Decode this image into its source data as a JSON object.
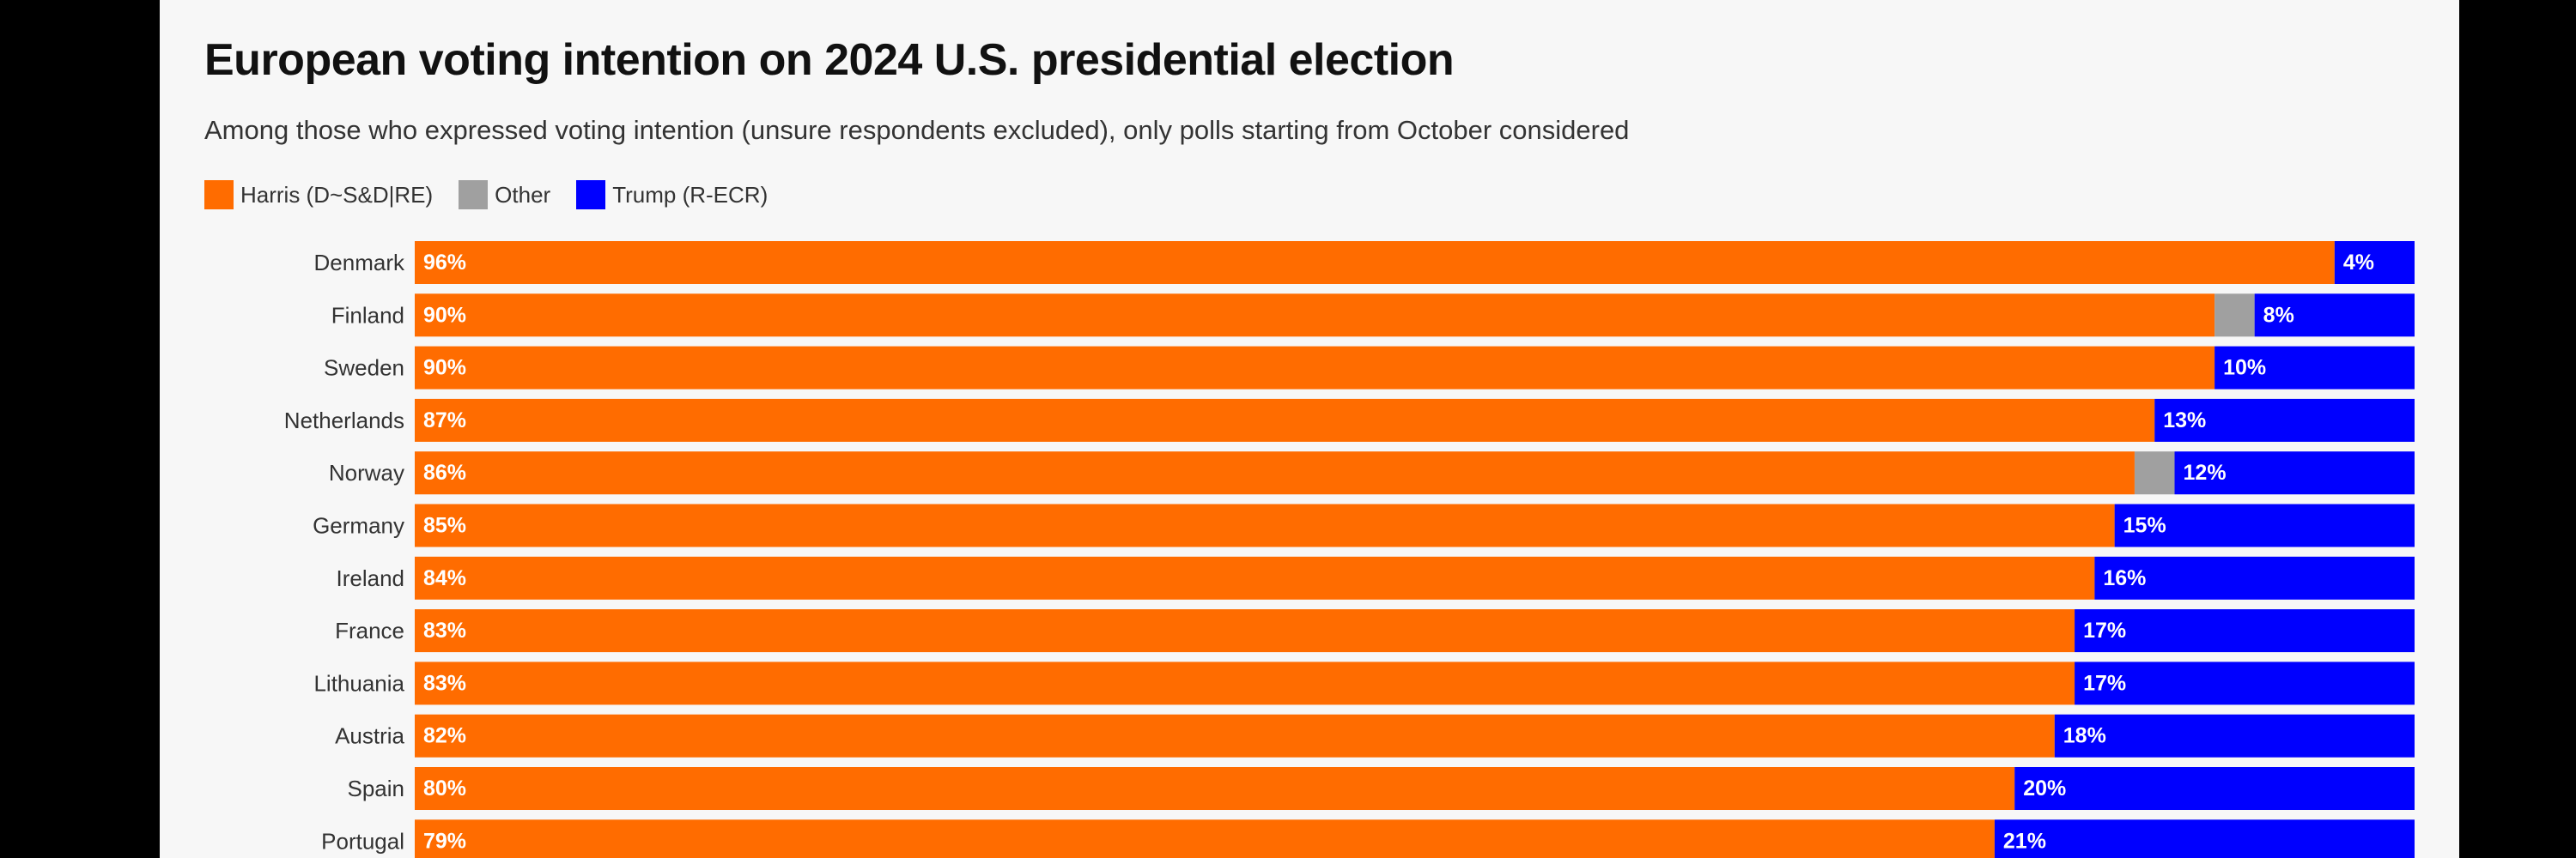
{
  "chart_data": {
    "type": "bar",
    "orientation": "horizontal",
    "stacked": true,
    "title": "European voting intention on 2024 U.S. presidential election",
    "subtitle": "Among those who expressed voting intention (unsure respondents excluded), only polls starting from October considered",
    "legend_position": "top-left",
    "grid": false,
    "xlim": [
      0,
      100
    ],
    "categories": [
      "Denmark",
      "Finland",
      "Sweden",
      "Netherlands",
      "Norway",
      "Germany",
      "Ireland",
      "France",
      "Lithuania",
      "Austria",
      "Spain",
      "Portugal"
    ],
    "series": [
      {
        "name": "Harris (D~S&D|RE)",
        "color": "#ff6c00",
        "values": [
          96,
          90,
          90,
          87,
          86,
          85,
          84,
          83,
          83,
          82,
          80,
          79
        ],
        "labels": [
          "96%",
          "90%",
          "90%",
          "87%",
          "86%",
          "85%",
          "84%",
          "83%",
          "83%",
          "82%",
          "80%",
          "79%"
        ]
      },
      {
        "name": "Other",
        "color": "#a0a0a0",
        "values": [
          0,
          2,
          0,
          0,
          2,
          0,
          0,
          0,
          0,
          0,
          0,
          0
        ],
        "labels": [
          "",
          "",
          "",
          "",
          "",
          "",
          "",
          "",
          "",
          "",
          "",
          ""
        ]
      },
      {
        "name": "Trump (R-ECR)",
        "color": "#0000ff",
        "values": [
          4,
          8,
          10,
          13,
          12,
          15,
          16,
          17,
          17,
          18,
          20,
          21
        ],
        "labels": [
          "4%",
          "8%",
          "10%",
          "13%",
          "12%",
          "15%",
          "16%",
          "17%",
          "17%",
          "18%",
          "20%",
          "21%"
        ]
      }
    ]
  }
}
